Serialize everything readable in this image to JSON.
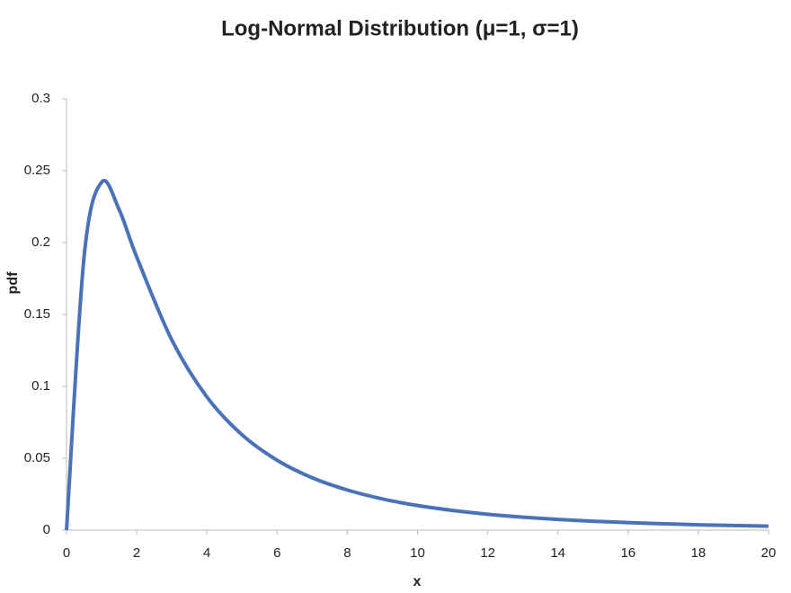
{
  "chart_data": {
    "type": "line",
    "title": "Log-Normal Distribution (μ=1, σ=1)",
    "x_label": "x",
    "y_label": "pdf",
    "x": [
      0,
      0.5,
      1,
      1.5,
      2,
      3,
      4,
      5,
      6,
      7,
      8,
      9,
      10,
      11,
      12,
      13,
      14,
      15,
      16,
      17,
      18,
      19,
      20
    ],
    "series": [
      {
        "name": "pdf",
        "color": "#4a72b8",
        "values": [
          0,
          0.19,
          0.242,
          0.2229,
          0.19,
          0.1323,
          0.0926,
          0.0663,
          0.0486,
          0.0364,
          0.0279,
          0.0217,
          0.0171,
          0.0137,
          0.011,
          0.009,
          0.0074,
          0.0062,
          0.0052,
          0.0044,
          0.0037,
          0.0032,
          0.0027
        ]
      }
    ],
    "xlim": [
      0,
      20
    ],
    "xticks": [
      0,
      2,
      4,
      6,
      8,
      10,
      12,
      14,
      16,
      18,
      20
    ],
    "ylim": [
      0,
      0.3
    ],
    "yticks": [
      0,
      0.05,
      0.1,
      0.15,
      0.2,
      0.25,
      0.3
    ],
    "grid": false,
    "smooth": true
  }
}
